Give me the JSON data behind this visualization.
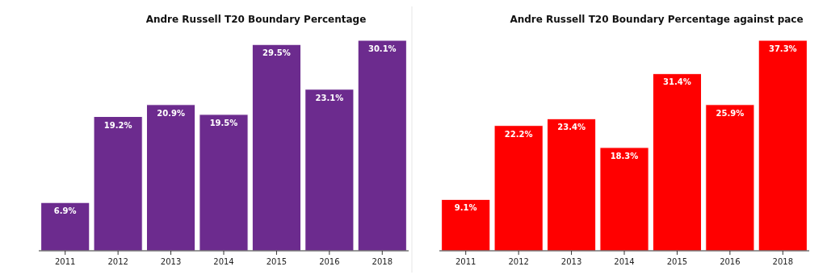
{
  "chart_data": [
    {
      "type": "bar",
      "title": "Andre Russell T20 Boundary Percentage",
      "categories": [
        "2011",
        "2012",
        "2013",
        "2014",
        "2015",
        "2016",
        "2018"
      ],
      "values": [
        6.9,
        19.2,
        20.9,
        19.5,
        29.5,
        23.1,
        30.1
      ],
      "color": "#6c2b8e",
      "value_labels": [
        "6.9%",
        "19.2%",
        "20.9%",
        "19.5%",
        "29.5%",
        "23.1%",
        "30.1%"
      ]
    },
    {
      "type": "bar",
      "title": "Andre Russell T20 Boundary Percentage against pace",
      "categories": [
        "2011",
        "2012",
        "2013",
        "2014",
        "2015",
        "2016",
        "2018"
      ],
      "values": [
        9.1,
        22.2,
        23.4,
        18.3,
        31.4,
        25.9,
        37.3
      ],
      "color": "#ff0000",
      "value_labels": [
        "9.1%",
        "22.2%",
        "23.4%",
        "18.3%",
        "31.4%",
        "25.9%",
        "37.3%"
      ]
    }
  ]
}
